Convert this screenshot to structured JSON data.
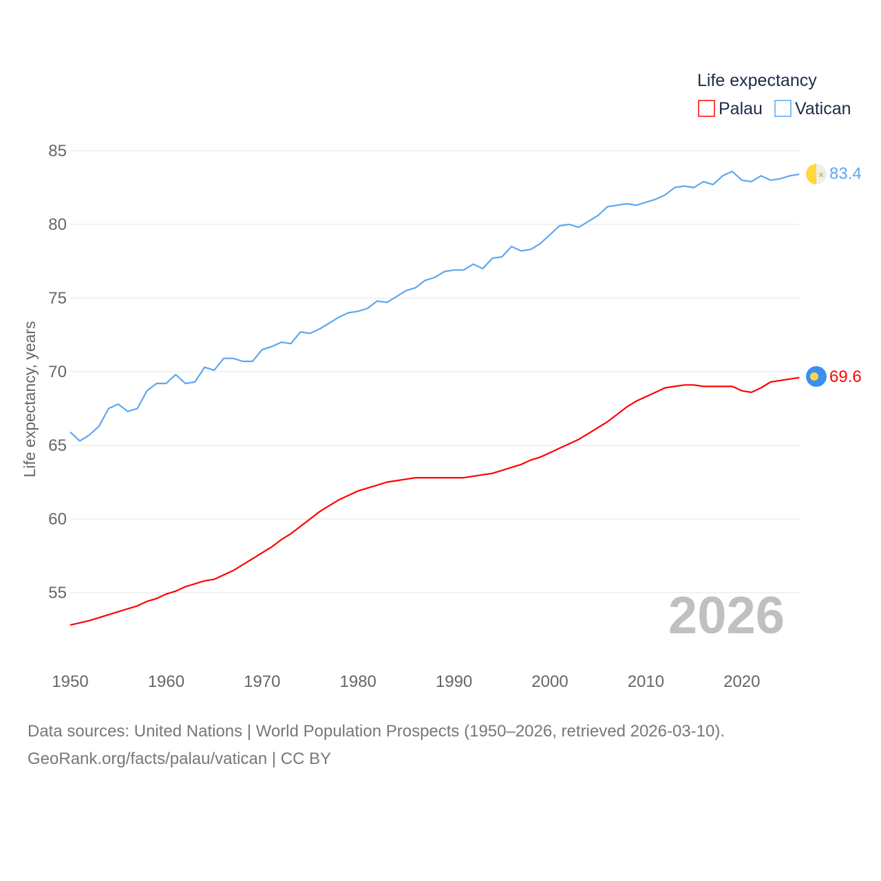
{
  "chart_data": {
    "type": "line",
    "title": "",
    "xlabel": "",
    "ylabel": "Life expectancy, years",
    "xlim": [
      1950,
      2026
    ],
    "ylim": [
      51.5,
      86
    ],
    "x_ticks": [
      "1950",
      "1960",
      "1970",
      "1980",
      "1990",
      "2000",
      "2010",
      "2020"
    ],
    "y_ticks": [
      "55",
      "60",
      "65",
      "70",
      "75",
      "80",
      "85"
    ],
    "grid": true,
    "legend": {
      "title": "Life expectancy",
      "placement": "top-right"
    },
    "year_label": "2026",
    "x": [
      1950,
      1951,
      1952,
      1953,
      1954,
      1955,
      1956,
      1957,
      1958,
      1959,
      1960,
      1961,
      1962,
      1963,
      1964,
      1965,
      1966,
      1967,
      1968,
      1969,
      1970,
      1971,
      1972,
      1973,
      1974,
      1975,
      1976,
      1977,
      1978,
      1979,
      1980,
      1981,
      1982,
      1983,
      1984,
      1985,
      1986,
      1987,
      1988,
      1989,
      1990,
      1991,
      1992,
      1993,
      1994,
      1995,
      1996,
      1997,
      1998,
      1999,
      2000,
      2001,
      2002,
      2003,
      2004,
      2005,
      2006,
      2007,
      2008,
      2009,
      2010,
      2011,
      2012,
      2013,
      2014,
      2015,
      2016,
      2017,
      2018,
      2019,
      2020,
      2021,
      2022,
      2023,
      2024,
      2025,
      2026
    ],
    "series": [
      {
        "name": "Palau",
        "color": "#ff0000",
        "end_label": "69.6",
        "values": [
          52.8,
          52.95,
          53.1,
          53.3,
          53.5,
          53.7,
          53.9,
          54.1,
          54.4,
          54.6,
          54.9,
          55.1,
          55.4,
          55.6,
          55.8,
          55.9,
          56.2,
          56.5,
          56.9,
          57.3,
          57.7,
          58.1,
          58.6,
          59.0,
          59.5,
          60.0,
          60.5,
          60.9,
          61.3,
          61.6,
          61.9,
          62.1,
          62.3,
          62.5,
          62.6,
          62.7,
          62.8,
          62.8,
          62.8,
          62.8,
          62.8,
          62.8,
          62.9,
          63.0,
          63.1,
          63.3,
          63.5,
          63.7,
          64.0,
          64.2,
          64.5,
          64.8,
          65.1,
          65.4,
          65.8,
          66.2,
          66.6,
          67.1,
          67.6,
          68.0,
          68.3,
          68.6,
          68.9,
          69.0,
          69.1,
          69.1,
          69.0,
          69.0,
          69.0,
          69.0,
          68.7,
          68.6,
          68.9,
          69.3,
          69.4,
          69.5,
          69.6
        ]
      },
      {
        "name": "Vatican",
        "color": "#5ba7f0",
        "end_label": "83.4",
        "values": [
          65.9,
          65.3,
          65.7,
          66.3,
          67.5,
          67.8,
          67.3,
          67.5,
          68.7,
          69.2,
          69.2,
          69.8,
          69.2,
          69.3,
          70.3,
          70.1,
          70.9,
          70.9,
          70.7,
          70.7,
          71.5,
          71.7,
          72.0,
          71.9,
          72.7,
          72.6,
          72.9,
          73.3,
          73.7,
          74.0,
          74.1,
          74.3,
          74.8,
          74.7,
          75.1,
          75.5,
          75.7,
          76.2,
          76.4,
          76.8,
          76.9,
          76.9,
          77.3,
          77.0,
          77.7,
          77.8,
          78.5,
          78.2,
          78.3,
          78.7,
          79.3,
          79.9,
          80.0,
          79.8,
          80.2,
          80.6,
          81.2,
          81.3,
          81.4,
          81.3,
          81.5,
          81.7,
          82.0,
          82.5,
          82.6,
          82.5,
          82.9,
          82.7,
          83.3,
          83.6,
          83.0,
          82.9,
          83.3,
          83.0,
          83.1,
          83.3,
          83.4
        ]
      }
    ]
  },
  "source": {
    "line1": "Data sources: United Nations | World Population Prospects (1950–2026, retrieved 2026-03-10).",
    "line2": "GeoRank.org/facts/palau/vatican | CC BY"
  }
}
